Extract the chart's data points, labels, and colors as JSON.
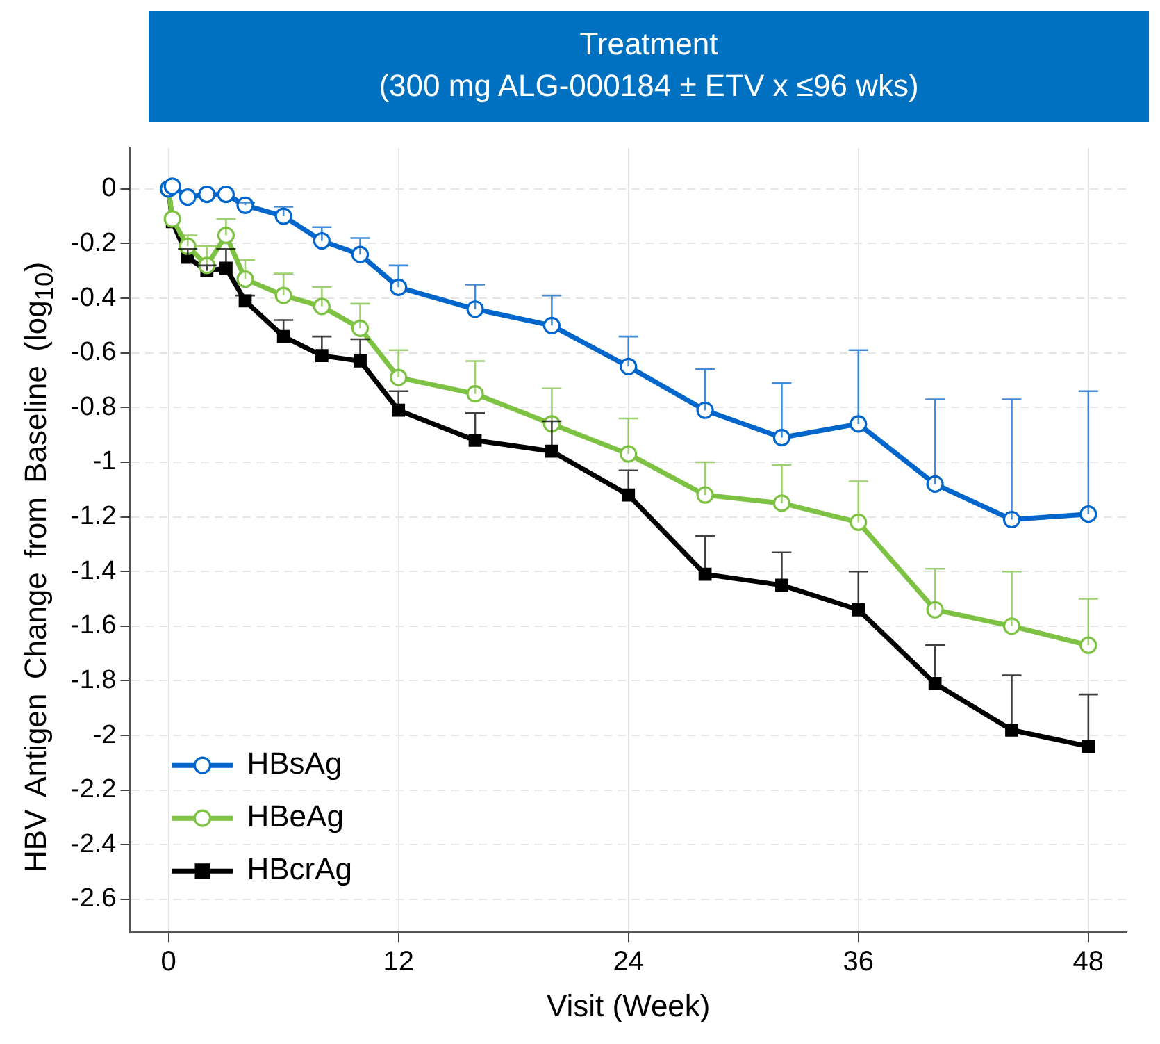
{
  "chart_data": {
    "type": "line",
    "title": "Treatment",
    "subtitle": "(300 mg ALG-000184 ± ETV x ≤96 wks)",
    "xlabel": "Visit (Week)",
    "ylabel": "HBV Antigen Change from Baseline (log$_{10}$)",
    "xlim": [
      -2,
      50
    ],
    "xticks": [
      0,
      12,
      24,
      36,
      48
    ],
    "ylim": [
      -2.72,
      0.15
    ],
    "yticks": [
      0,
      -0.2,
      -0.4,
      -0.6,
      -0.8,
      -1,
      -1.2,
      -1.4,
      -1.6,
      -1.8,
      -2,
      -2.2,
      -2.4,
      -2.6
    ],
    "grid": true,
    "legend": "bottom left",
    "line_style": "solid",
    "series": [
      {
        "name": "HBsAg",
        "color": "#0066cc",
        "marker": "circle",
        "x": [
          0,
          0.2,
          1,
          2,
          3,
          4,
          6,
          8,
          10,
          12,
          16,
          20,
          24,
          28,
          32,
          36,
          40,
          44,
          48
        ],
        "values": [
          0,
          0.01,
          -0.03,
          -0.02,
          -0.02,
          -0.06,
          -0.1,
          -0.19,
          -0.24,
          -0.36,
          -0.44,
          -0.5,
          -0.65,
          -0.81,
          -0.91,
          -0.86,
          -1.08,
          -1.21,
          -1.19
        ],
        "errors": [
          null,
          null,
          null,
          null,
          null,
          [
            -0.06,
            -0.05
          ],
          [
            -0.1,
            -0.065
          ],
          [
            -0.19,
            -0.14
          ],
          [
            -0.24,
            -0.18
          ],
          [
            -0.36,
            -0.28
          ],
          [
            -0.44,
            -0.35
          ],
          [
            -0.5,
            -0.39
          ],
          [
            -0.65,
            -0.54
          ],
          [
            -0.81,
            -0.66
          ],
          [
            -0.91,
            -0.71
          ],
          [
            -0.86,
            -0.59
          ],
          [
            -1.08,
            -0.77
          ],
          [
            -1.21,
            -0.77
          ],
          [
            -1.19,
            -0.74
          ]
        ]
      },
      {
        "name": "HBeAg",
        "color": "#7dc242",
        "marker": "circle",
        "x": [
          0,
          0.2,
          1,
          2,
          3,
          4,
          6,
          8,
          10,
          12,
          16,
          20,
          24,
          28,
          32,
          36,
          40,
          44,
          48
        ],
        "values": [
          0,
          -0.11,
          -0.21,
          -0.28,
          -0.17,
          -0.33,
          -0.39,
          -0.43,
          -0.51,
          -0.69,
          -0.75,
          -0.86,
          -0.97,
          -1.12,
          -1.15,
          -1.22,
          -1.54,
          -1.6,
          -1.67
        ],
        "errors": [
          null,
          null,
          [
            -0.21,
            -0.17
          ],
          [
            -0.28,
            -0.21
          ],
          [
            -0.17,
            -0.11
          ],
          [
            -0.33,
            -0.26
          ],
          [
            -0.39,
            -0.31
          ],
          [
            -0.43,
            -0.36
          ],
          [
            -0.51,
            -0.42
          ],
          [
            -0.69,
            -0.59
          ],
          [
            -0.75,
            -0.63
          ],
          [
            -0.86,
            -0.73
          ],
          [
            -0.97,
            -0.84
          ],
          [
            -1.12,
            -1
          ],
          [
            -1.15,
            -1.01
          ],
          [
            -1.22,
            -1.07
          ],
          [
            -1.54,
            -1.39
          ],
          [
            -1.6,
            -1.4
          ],
          [
            -1.67,
            -1.5
          ]
        ]
      },
      {
        "name": "HBcrAg",
        "color": "#000000",
        "marker": "square",
        "x": [
          0,
          0.2,
          1,
          2,
          3,
          4,
          6,
          8,
          10,
          12,
          16,
          20,
          24,
          28,
          32,
          36,
          40,
          44,
          48
        ],
        "values": [
          0,
          -0.12,
          -0.25,
          -0.3,
          -0.29,
          -0.41,
          -0.54,
          -0.61,
          -0.63,
          -0.81,
          -0.92,
          -0.96,
          -1.12,
          -1.41,
          -1.45,
          -1.54,
          -1.81,
          -1.98,
          -2.04
        ],
        "errors": [
          null,
          null,
          [
            -0.25,
            -0.22
          ],
          [
            -0.3,
            -0.28
          ],
          [
            -0.29,
            -0.22
          ],
          [
            -0.41,
            -0.39
          ],
          [
            -0.54,
            -0.48
          ],
          [
            -0.61,
            -0.54
          ],
          [
            -0.63,
            -0.55
          ],
          [
            -0.81,
            -0.74
          ],
          [
            -0.92,
            -0.82
          ],
          [
            -0.96,
            -0.85
          ],
          [
            -1.12,
            -1.03
          ],
          [
            -1.41,
            -1.27
          ],
          [
            -1.45,
            -1.33
          ],
          [
            -1.54,
            -1.4
          ],
          [
            -1.81,
            -1.67
          ],
          [
            -1.98,
            -1.78
          ],
          [
            -2.04,
            -1.85
          ]
        ]
      }
    ]
  }
}
